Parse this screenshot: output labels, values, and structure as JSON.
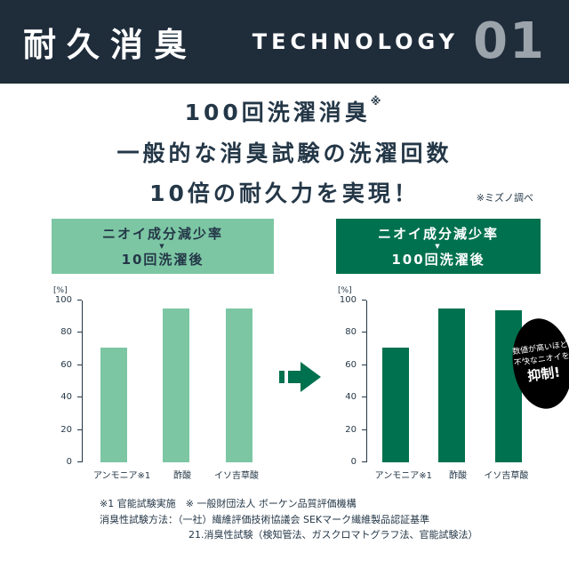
{
  "header": {
    "title": "耐久消臭",
    "tech_label": "TECHNOLOGY",
    "tech_number": "01"
  },
  "headline": {
    "line1": "100回洗濯消臭",
    "line1_sup": "※",
    "line2": "一般的な消臭試験の洗濯回数",
    "line3": "10倍の耐久力を実現！",
    "note": "※ミズノ調べ"
  },
  "icons": {
    "down_triangle": "▼"
  },
  "colors": {
    "header_bg": "#1f2c3a",
    "text_navy": "#243747",
    "light_green": "#7cc6a4",
    "dark_green": "#00714e",
    "tech_number_gray": "#9ba3ab",
    "callout_bg": "#000000"
  },
  "chart_data": [
    {
      "type": "bar",
      "badge_line1": "ニオイ成分減少率",
      "badge_line2": "10回洗濯後",
      "unit": "[%]",
      "categories": [
        "アンモニア※1",
        "酢酸",
        "イソ吉草酸"
      ],
      "values": [
        71,
        95,
        95
      ],
      "ylim": [
        0,
        100
      ],
      "yticks": [
        0,
        20,
        40,
        60,
        80,
        100
      ],
      "grid": false,
      "legend_position": "none",
      "bar_color": "#7cc6a4",
      "badge_bg": "#7cc6a4",
      "badge_text": "#243747"
    },
    {
      "type": "bar",
      "badge_line1": "ニオイ成分減少率",
      "badge_line2": "100回洗濯後",
      "unit": "[%]",
      "categories": [
        "アンモニア※1",
        "酢酸",
        "イソ吉草酸"
      ],
      "values": [
        71,
        95,
        94
      ],
      "ylim": [
        0,
        100
      ],
      "yticks": [
        0,
        20,
        40,
        60,
        80,
        100
      ],
      "grid": false,
      "legend_position": "none",
      "bar_color": "#00714e",
      "badge_bg": "#00714e",
      "badge_text": "#ffffff"
    }
  ],
  "callout": {
    "line1": "数値が高いほど",
    "line2": "不快なニオイを",
    "line3": "抑制!"
  },
  "footnotes": {
    "line1": "※1 官能試験実施　※ 一般財団法人 ボーケン品質評価機構",
    "line2": "消臭性試験方法：（一社）繊維評価技術協議会 SEKマーク繊維製品認証基準",
    "line3": "21.消臭性試験（検知管法、ガスクロマトグラフ法、官能試験法）"
  }
}
